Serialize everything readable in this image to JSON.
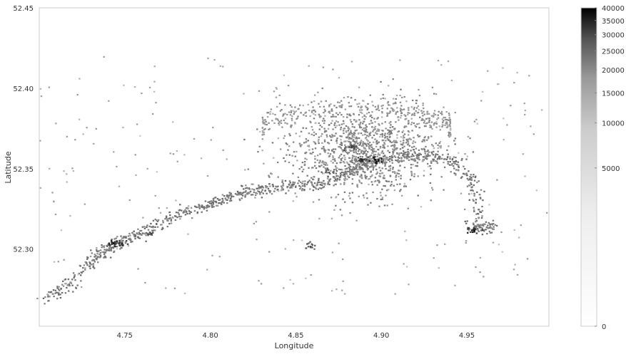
{
  "chart_data": {
    "type": "heatmap",
    "title": "",
    "xlabel": "Longitude",
    "ylabel": "Latitude",
    "xlim": [
      4.7,
      4.998
    ],
    "ylim": [
      52.252,
      52.45
    ],
    "x_ticks": [
      "4.75",
      "4.80",
      "4.85",
      "4.90",
      "4.95"
    ],
    "x_tick_values": [
      4.75,
      4.8,
      4.85,
      4.9,
      4.95
    ],
    "y_ticks": [
      "52.30",
      "52.35",
      "52.40",
      "52.45"
    ],
    "y_tick_values": [
      52.3,
      52.35,
      52.4,
      52.45
    ],
    "grid": false,
    "colormap": "Greys",
    "colorbar": {
      "scale": "log-like",
      "range": [
        0,
        40000
      ],
      "ticks": [
        {
          "label": "40000",
          "value": 40000
        },
        {
          "label": "35000",
          "value": 35000
        },
        {
          "label": "30000",
          "value": 30000
        },
        {
          "label": "25000",
          "value": 25000
        },
        {
          "label": "20000",
          "value": 20000
        },
        {
          "label": "15000",
          "value": 15000
        },
        {
          "label": "10000",
          "value": 10000
        },
        {
          "label": "5000",
          "value": 5000
        },
        {
          "label": "0",
          "value": 0
        }
      ]
    },
    "hotspots": [
      {
        "lon": 4.896,
        "lat": 52.356,
        "count": 40000
      },
      {
        "lon": 4.888,
        "lat": 52.356,
        "count": 18000
      },
      {
        "lon": 4.743,
        "lat": 52.304,
        "count": 30000
      },
      {
        "lon": 4.748,
        "lat": 52.304,
        "count": 15000
      },
      {
        "lon": 4.954,
        "lat": 52.312,
        "count": 25000
      },
      {
        "lon": 4.882,
        "lat": 52.364,
        "count": 8000
      },
      {
        "lon": 4.765,
        "lat": 52.31,
        "count": 6000
      },
      {
        "lon": 4.858,
        "lat": 52.302,
        "count": 5000
      },
      {
        "lon": 4.869,
        "lat": 52.348,
        "count": 4000
      }
    ]
  }
}
